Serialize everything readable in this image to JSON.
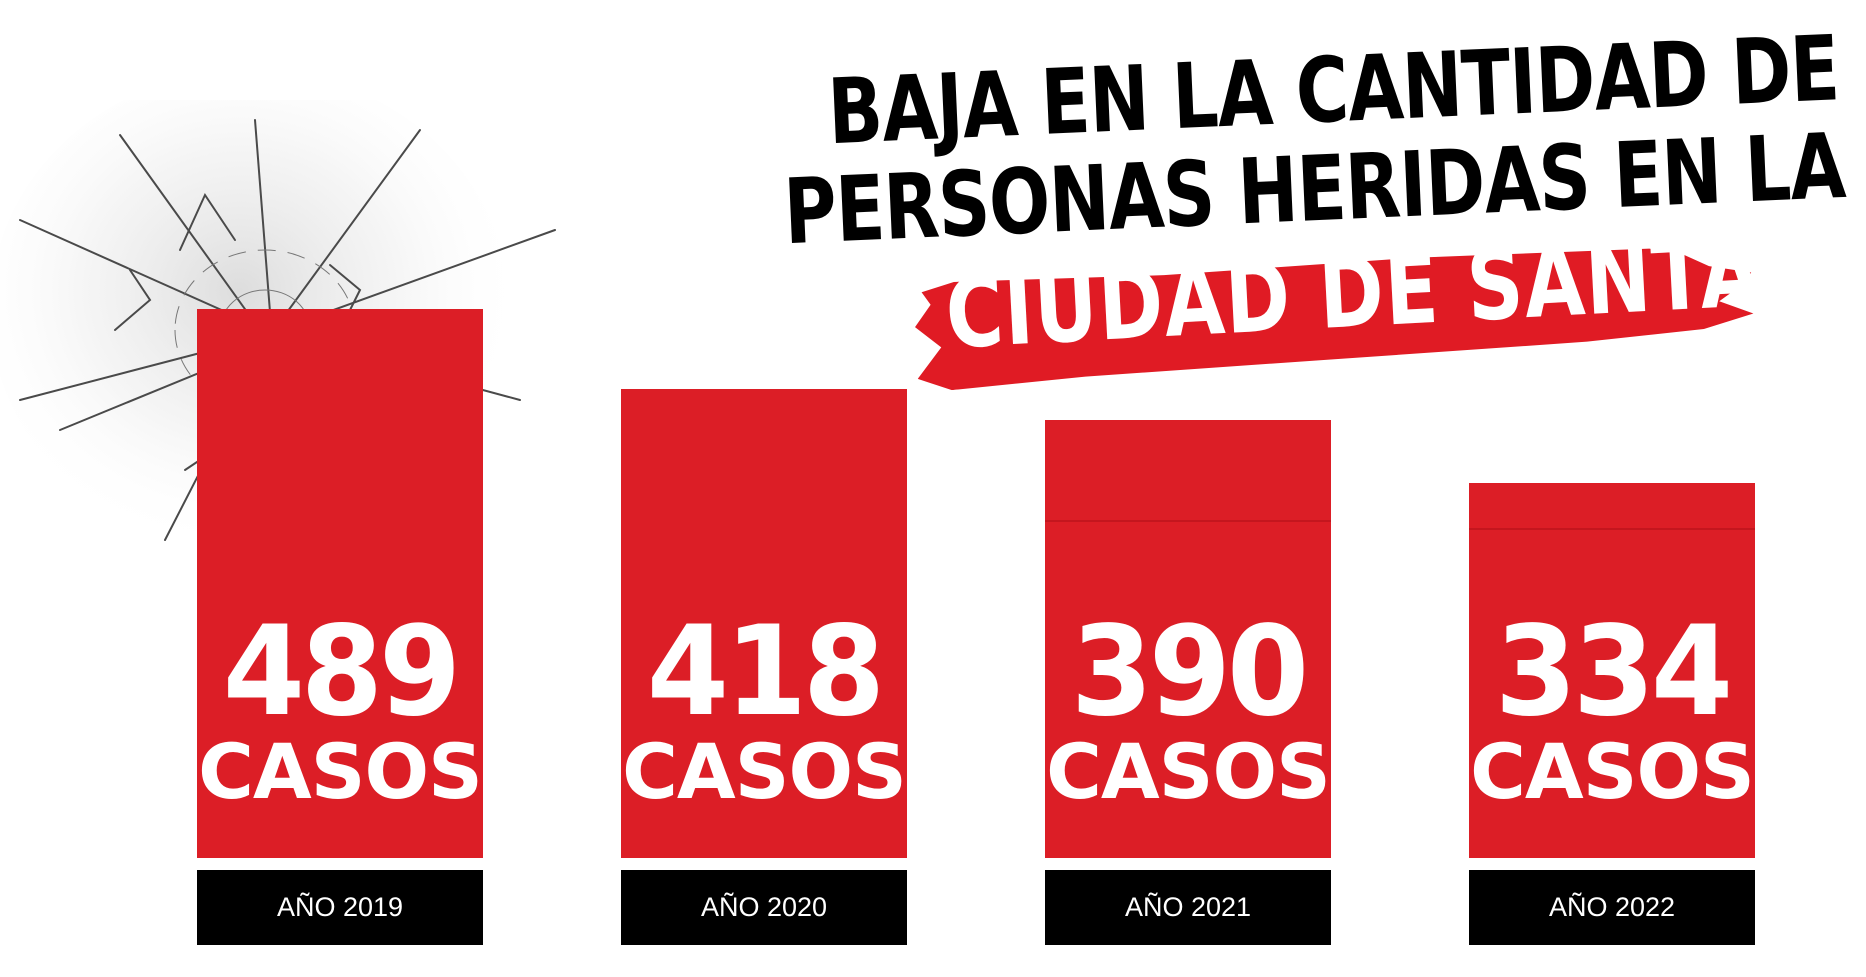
{
  "title": {
    "line1": "BAJA EN LA CANTIDAD DE",
    "line2": "PERSONAS HERIDAS EN LA",
    "line3": "CIUDAD DE SANTA FE"
  },
  "colors": {
    "bar": "#dc1e26",
    "label_background": "#000000",
    "label_text": "#ffffff",
    "title_text": "#000000",
    "highlight": "#e01b24"
  },
  "decoration": "cracked-glass-icon",
  "unit": "CASOS",
  "chart_data": {
    "type": "bar",
    "title": "BAJA EN LA CANTIDAD DE PERSONAS HERIDAS EN LA CIUDAD DE SANTA FE",
    "categories": [
      "AÑO 2019",
      "AÑO 2020",
      "AÑO 2021",
      "AÑO 2022"
    ],
    "values": [
      489,
      418,
      390,
      334
    ],
    "value_labels": [
      "489",
      "418",
      "390",
      "334"
    ],
    "unit_label": "CASOS",
    "xlabel": "",
    "ylabel": "",
    "ylim": [
      0,
      489
    ],
    "grid": false,
    "legend": "none"
  }
}
